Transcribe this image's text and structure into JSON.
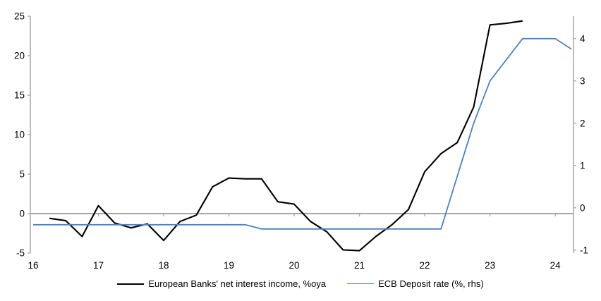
{
  "chart_data": {
    "type": "line",
    "title": "",
    "legend_position": "bottom",
    "background": "#ffffff",
    "axis_color": "#a6a6a6",
    "text_color": "#000000",
    "x_axis": {
      "ticks": [
        16,
        17,
        18,
        19,
        20,
        21,
        22,
        23,
        24
      ],
      "range": [
        16,
        24.28
      ]
    },
    "left_axis": {
      "ticks": [
        -5,
        0,
        5,
        10,
        15,
        20,
        25
      ],
      "range": [
        -5,
        25
      ]
    },
    "right_axis": {
      "ticks": [
        -1,
        0,
        1,
        2,
        3,
        4
      ],
      "range": [
        -1.07,
        4.53
      ]
    },
    "series": [
      {
        "name": "European Banks' net interest income, %oya",
        "color": "#000000",
        "width": 2.1,
        "axis": "left",
        "x": [
          16.25,
          16.5,
          16.75,
          17.0,
          17.25,
          17.5,
          17.75,
          18.0,
          18.25,
          18.5,
          18.75,
          19.0,
          19.25,
          19.5,
          19.75,
          20.0,
          20.25,
          20.5,
          20.75,
          21.0,
          21.25,
          21.5,
          21.75,
          22.0,
          22.25,
          22.5,
          22.75,
          23.0,
          23.25,
          23.5
        ],
        "y": [
          -0.6,
          -0.9,
          -2.9,
          1.0,
          -1.2,
          -1.8,
          -1.3,
          -3.4,
          -1.0,
          -0.2,
          3.4,
          4.5,
          4.4,
          4.4,
          1.5,
          1.2,
          -1.0,
          -2.3,
          -4.6,
          -4.7,
          -2.9,
          -1.4,
          0.5,
          5.3,
          7.6,
          9.0,
          13.5,
          23.9,
          24.1,
          24.4
        ]
      },
      {
        "name": "ECB Deposit rate (%, rhs)",
        "color": "#4f81bd",
        "width": 1.8,
        "axis": "right",
        "x": [
          16.0,
          16.25,
          16.5,
          16.75,
          17.0,
          17.25,
          17.5,
          17.75,
          18.0,
          18.25,
          18.5,
          18.75,
          19.0,
          19.25,
          19.5,
          19.75,
          20.0,
          20.25,
          20.5,
          20.75,
          21.0,
          21.25,
          21.5,
          21.75,
          22.0,
          22.25,
          22.5,
          22.75,
          23.0,
          23.25,
          23.5,
          23.75,
          24.0,
          24.25
        ],
        "y": [
          -0.4,
          -0.4,
          -0.4,
          -0.4,
          -0.4,
          -0.4,
          -0.4,
          -0.4,
          -0.4,
          -0.4,
          -0.4,
          -0.4,
          -0.4,
          -0.4,
          -0.5,
          -0.5,
          -0.5,
          -0.5,
          -0.5,
          -0.5,
          -0.5,
          -0.5,
          -0.5,
          -0.5,
          -0.5,
          -0.5,
          0.75,
          2.0,
          3.0,
          3.5,
          4.0,
          4.0,
          4.0,
          3.75
        ]
      }
    ]
  },
  "legend": {
    "item1": "European Banks' net interest income, %oya",
    "item2": "ECB Deposit rate (%, rhs)"
  }
}
